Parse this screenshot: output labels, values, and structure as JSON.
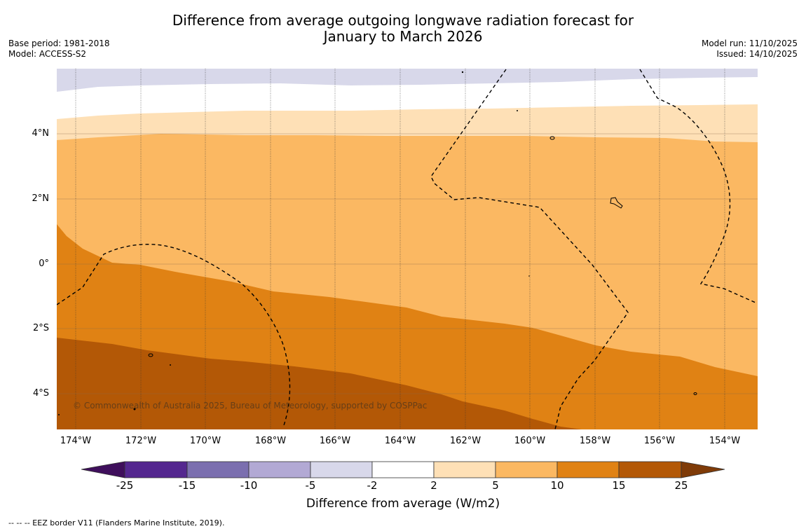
{
  "title": {
    "line1": "Difference from average outgoing longwave radiation forecast for",
    "line2": "January to March 2026"
  },
  "meta_left": {
    "base_period": "Base period: 1981-2018",
    "model": "Model: ACCESS-S2"
  },
  "meta_right": {
    "model_run": "Model run: 11/10/2025",
    "issued": "Issued: 14/10/2025"
  },
  "map": {
    "lat_labels": [
      "4°N",
      "2°N",
      "0°",
      "2°S",
      "4°S"
    ],
    "lon_labels": [
      "174°W",
      "172°W",
      "170°W",
      "168°W",
      "166°W",
      "164°W",
      "162°W",
      "160°W",
      "158°W",
      "156°W",
      "154°W"
    ],
    "copyright": "© Commonwealth of Australia 2025, Bureau of Meteorology, supported by COSPPac"
  },
  "colorbar": {
    "ticks": [
      "-25",
      "-15",
      "-10",
      "-5",
      "-2",
      "2",
      "5",
      "10",
      "15",
      "25"
    ],
    "colors": [
      "#3f0f5c",
      "#54278f",
      "#7b6faf",
      "#b2a9d4",
      "#d8d8ea",
      "#ffffff",
      "#fee0b6",
      "#fbb862",
      "#e08214",
      "#b35806",
      "#7f3b08"
    ],
    "label": "Difference from average (W/m2)"
  },
  "footnote": "--  --  -- EEZ border V11 (Flanders Marine Institute, 2019)."
}
